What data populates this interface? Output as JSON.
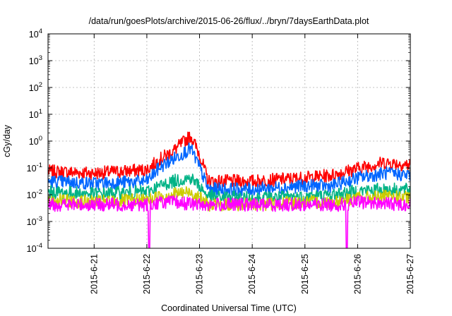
{
  "chart_data": {
    "type": "line",
    "title": "/data/run/goesPlots/archive/2015-06-26/flux/../bryn/7daysEarthData.plot",
    "xlabel": "Coordinated Universal Time (UTC)",
    "ylabel": "cGy/day",
    "yscale": "log",
    "ylim": [
      0.0001,
      10000
    ],
    "yticks": [
      {
        "value": 0.0001,
        "base": "10",
        "exp": "-4"
      },
      {
        "value": 0.001,
        "base": "10",
        "exp": "-3"
      },
      {
        "value": 0.01,
        "base": "10",
        "exp": "-2"
      },
      {
        "value": 0.1,
        "base": "10",
        "exp": "-1"
      },
      {
        "value": 1,
        "base": "10",
        "exp": "0"
      },
      {
        "value": 10,
        "base": "10",
        "exp": "1"
      },
      {
        "value": 100,
        "base": "10",
        "exp": "2"
      },
      {
        "value": 1000,
        "base": "10",
        "exp": "3"
      },
      {
        "value": 10000,
        "base": "10",
        "exp": "4"
      }
    ],
    "xlim": [
      "2015-06-20 03:00",
      "2015-06-27 00:00"
    ],
    "xticks": [
      "2015-6-21",
      "2015-6-22",
      "2015-6-23",
      "2015-6-24",
      "2015-6-25",
      "2015-6-26",
      "2015-6-27"
    ],
    "grid": true,
    "series": [
      {
        "color": "#ff0000",
        "x": [
          "2015-06-20 03:00",
          "2015-06-21 00:00",
          "2015-06-22 00:00",
          "2015-06-22 06:00",
          "2015-06-22 12:00",
          "2015-06-22 20:00",
          "2015-06-23 00:00",
          "2015-06-23 04:00",
          "2015-06-24 00:00",
          "2015-06-25 00:00",
          "2015-06-25 12:00",
          "2015-06-26 00:00",
          "2015-06-26 12:00",
          "2015-06-27 00:00"
        ],
        "values": [
          0.07,
          0.06,
          0.08,
          0.2,
          0.4,
          1.5,
          0.3,
          0.03,
          0.03,
          0.04,
          0.05,
          0.09,
          0.15,
          0.12
        ]
      },
      {
        "color": "#0066ff",
        "x": [
          "2015-06-20 03:00",
          "2015-06-21 00:00",
          "2015-06-22 00:00",
          "2015-06-22 06:00",
          "2015-06-22 12:00",
          "2015-06-22 20:00",
          "2015-06-23 00:00",
          "2015-06-23 04:00",
          "2015-06-24 00:00",
          "2015-06-25 00:00",
          "2015-06-25 12:00",
          "2015-06-26 00:00",
          "2015-06-26 12:00",
          "2015-06-27 00:00"
        ],
        "values": [
          0.03,
          0.025,
          0.03,
          0.1,
          0.2,
          0.5,
          0.1,
          0.015,
          0.015,
          0.02,
          0.02,
          0.04,
          0.06,
          0.05
        ]
      },
      {
        "color": "#00b386",
        "x": [
          "2015-06-20 03:00",
          "2015-06-21 00:00",
          "2015-06-22 00:00",
          "2015-06-22 06:00",
          "2015-06-22 12:00",
          "2015-06-22 20:00",
          "2015-06-23 00:00",
          "2015-06-23 04:00",
          "2015-06-24 00:00",
          "2015-06-25 00:00",
          "2015-06-25 12:00",
          "2015-06-26 00:00",
          "2015-06-26 12:00",
          "2015-06-27 00:00"
        ],
        "values": [
          0.012,
          0.01,
          0.012,
          0.02,
          0.03,
          0.04,
          0.02,
          0.008,
          0.007,
          0.008,
          0.009,
          0.013,
          0.015,
          0.014
        ]
      },
      {
        "color": "#cccc00",
        "x": [
          "2015-06-20 03:00",
          "2015-06-21 00:00",
          "2015-06-22 00:00",
          "2015-06-22 06:00",
          "2015-06-22 12:00",
          "2015-06-22 20:00",
          "2015-06-23 00:00",
          "2015-06-23 04:00",
          "2015-06-24 00:00",
          "2015-06-25 00:00",
          "2015-06-25 12:00",
          "2015-06-26 00:00",
          "2015-06-26 12:00",
          "2015-06-27 00:00"
        ],
        "values": [
          0.006,
          0.005,
          0.006,
          0.008,
          0.01,
          0.012,
          0.007,
          0.004,
          0.004,
          0.005,
          0.005,
          0.007,
          0.008,
          0.007
        ]
      },
      {
        "color": "#ff00ff",
        "x": [
          "2015-06-20 03:00",
          "2015-06-21 00:00",
          "2015-06-22 00:00",
          "2015-06-22 01:00",
          "2015-06-22 02:00",
          "2015-06-22 06:00",
          "2015-06-22 12:00",
          "2015-06-23 00:00",
          "2015-06-24 00:00",
          "2015-06-25 00:00",
          "2015-06-25 19:00",
          "2015-06-25 20:00",
          "2015-06-26 00:00",
          "2015-06-27 00:00"
        ],
        "values": [
          0.004,
          0.004,
          0.004,
          0.0001,
          0.004,
          0.005,
          0.005,
          0.004,
          0.004,
          0.004,
          0.0001,
          0.004,
          0.005,
          0.004
        ]
      }
    ]
  }
}
